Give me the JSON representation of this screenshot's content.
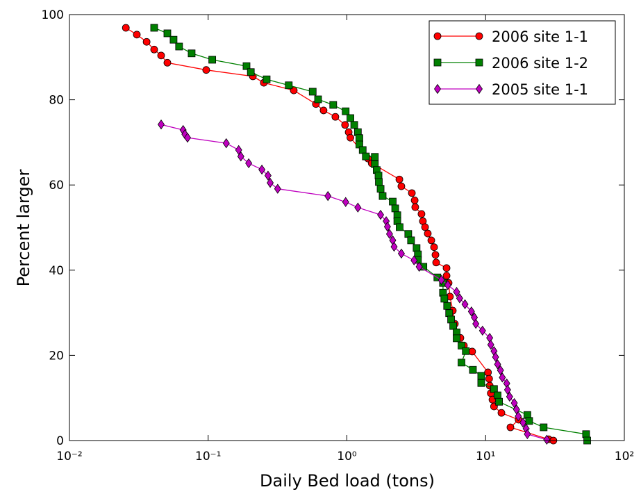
{
  "chart_data": {
    "type": "line",
    "xlabel": "Daily Bed load (tons)",
    "ylabel": "Percent larger",
    "xscale": "log",
    "xlim": [
      0.01,
      100
    ],
    "ylim": [
      0,
      100
    ],
    "xticks": [
      {
        "value": 0.01,
        "label": "10⁻²"
      },
      {
        "value": 0.1,
        "label": "10⁻¹"
      },
      {
        "value": 1,
        "label": "10⁰"
      },
      {
        "value": 10,
        "label": "10¹"
      },
      {
        "value": 100,
        "label": "10²"
      }
    ],
    "yticks": [
      0,
      20,
      40,
      60,
      80,
      100
    ],
    "legend": "upper right",
    "series": [
      {
        "name": "2006 site 1-1",
        "color": "#ff0000",
        "marker": "circle",
        "x": [
          0.0255,
          0.0306,
          0.036,
          0.0408,
          0.0458,
          0.0508,
          0.0968,
          0.21,
          0.252,
          0.414,
          0.598,
          0.679,
          0.826,
          0.97,
          1.03,
          1.06,
          1.42,
          1.51,
          2.39,
          2.47,
          2.94,
          3.08,
          3.11,
          3.45,
          3.53,
          3.66,
          3.83,
          4.06,
          4.25,
          4.35,
          4.4,
          5.23,
          5.23,
          5.41,
          5.53,
          5.8,
          6.0,
          6.58,
          6.97,
          8.0,
          10.4,
          10.6,
          10.7,
          10.9,
          11.2,
          11.5,
          13.0,
          17.3,
          15.1,
          28.5,
          30.8
        ],
        "values": [
          96.9,
          95.3,
          93.6,
          91.8,
          90.4,
          88.7,
          87.0,
          85.5,
          84.0,
          82.2,
          79.0,
          77.5,
          76.0,
          74.1,
          72.4,
          71.1,
          66.2,
          65.1,
          61.3,
          59.7,
          58.1,
          56.4,
          54.8,
          53.2,
          51.5,
          50.1,
          48.6,
          47.0,
          45.4,
          43.6,
          41.8,
          40.5,
          38.7,
          37.0,
          33.8,
          30.5,
          27.4,
          24.1,
          22.3,
          20.9,
          16.0,
          14.5,
          12.9,
          11.1,
          9.6,
          8.0,
          6.5,
          4.9,
          3.1,
          0.3,
          0
        ]
      },
      {
        "name": "2006 site 1-2",
        "color": "#008000",
        "marker": "square",
        "x": [
          0.0408,
          0.0508,
          0.0563,
          0.0617,
          0.076,
          0.107,
          0.189,
          0.203,
          0.264,
          0.381,
          0.567,
          0.62,
          0.797,
          0.98,
          1.06,
          1.13,
          1.2,
          1.23,
          1.23,
          1.3,
          1.37,
          1.59,
          1.59,
          1.64,
          1.69,
          1.7,
          1.75,
          1.81,
          2.14,
          2.23,
          2.31,
          2.31,
          2.4,
          2.77,
          2.9,
          3.18,
          3.25,
          3.25,
          3.56,
          4.49,
          4.93,
          4.93,
          5.04,
          5.28,
          5.46,
          5.64,
          5.84,
          6.18,
          6.18,
          6.7,
          7.2,
          6.7,
          8.1,
          9.3,
          9.3,
          11.5,
          12.2,
          12.5,
          20.0,
          20.6,
          26.2,
          53,
          54
        ],
        "values": [
          96.9,
          95.6,
          94.1,
          92.5,
          90.9,
          89.4,
          87.9,
          86.5,
          84.8,
          83.4,
          81.9,
          80.1,
          78.8,
          77.3,
          75.7,
          74.1,
          72.4,
          71.0,
          69.5,
          68.2,
          66.7,
          66.6,
          64.9,
          63.5,
          62.2,
          60.7,
          59.1,
          57.4,
          56.1,
          54.5,
          52.9,
          51.5,
          50.1,
          48.5,
          47.0,
          45.2,
          43.7,
          42.4,
          40.8,
          38.3,
          37.0,
          34.7,
          33.3,
          31.6,
          29.9,
          28.4,
          26.9,
          25.4,
          24.0,
          22.3,
          21.0,
          18.3,
          16.6,
          15.2,
          13.5,
          12.1,
          10.6,
          9.1,
          6.0,
          4.6,
          3.1,
          1.5,
          0
        ]
      },
      {
        "name": "2005 site 1-1",
        "color": "#bf00bf",
        "marker": "diamond",
        "x": [
          0.0458,
          0.066,
          0.068,
          0.071,
          0.135,
          0.166,
          0.172,
          0.196,
          0.244,
          0.27,
          0.28,
          0.317,
          0.73,
          0.98,
          1.2,
          1.75,
          1.92,
          1.96,
          2.03,
          2.14,
          2.19,
          2.47,
          3.05,
          3.32,
          4.8,
          5.34,
          6.18,
          6.5,
          7.1,
          7.9,
          8.3,
          8.5,
          9.5,
          10.7,
          10.9,
          11.5,
          11.8,
          12.2,
          12.8,
          13.2,
          14.2,
          14.4,
          14.9,
          16.1,
          16.7,
          17.2,
          18.6,
          19.6,
          20.0,
          27.6
        ],
        "values": [
          74.2,
          72.9,
          71.9,
          71.1,
          69.8,
          68.2,
          66.7,
          65.1,
          63.6,
          62.2,
          60.5,
          59.1,
          57.4,
          56.0,
          54.7,
          53.0,
          51.5,
          50.2,
          48.5,
          47.0,
          45.5,
          43.9,
          42.3,
          40.8,
          37.7,
          36.5,
          34.9,
          33.4,
          32.0,
          30.3,
          28.9,
          27.4,
          25.8,
          24.1,
          22.5,
          21.0,
          19.6,
          17.9,
          16.5,
          14.8,
          13.4,
          11.9,
          10.3,
          8.8,
          7.3,
          5.7,
          4.2,
          2.8,
          1.5,
          0.2
        ]
      }
    ]
  }
}
